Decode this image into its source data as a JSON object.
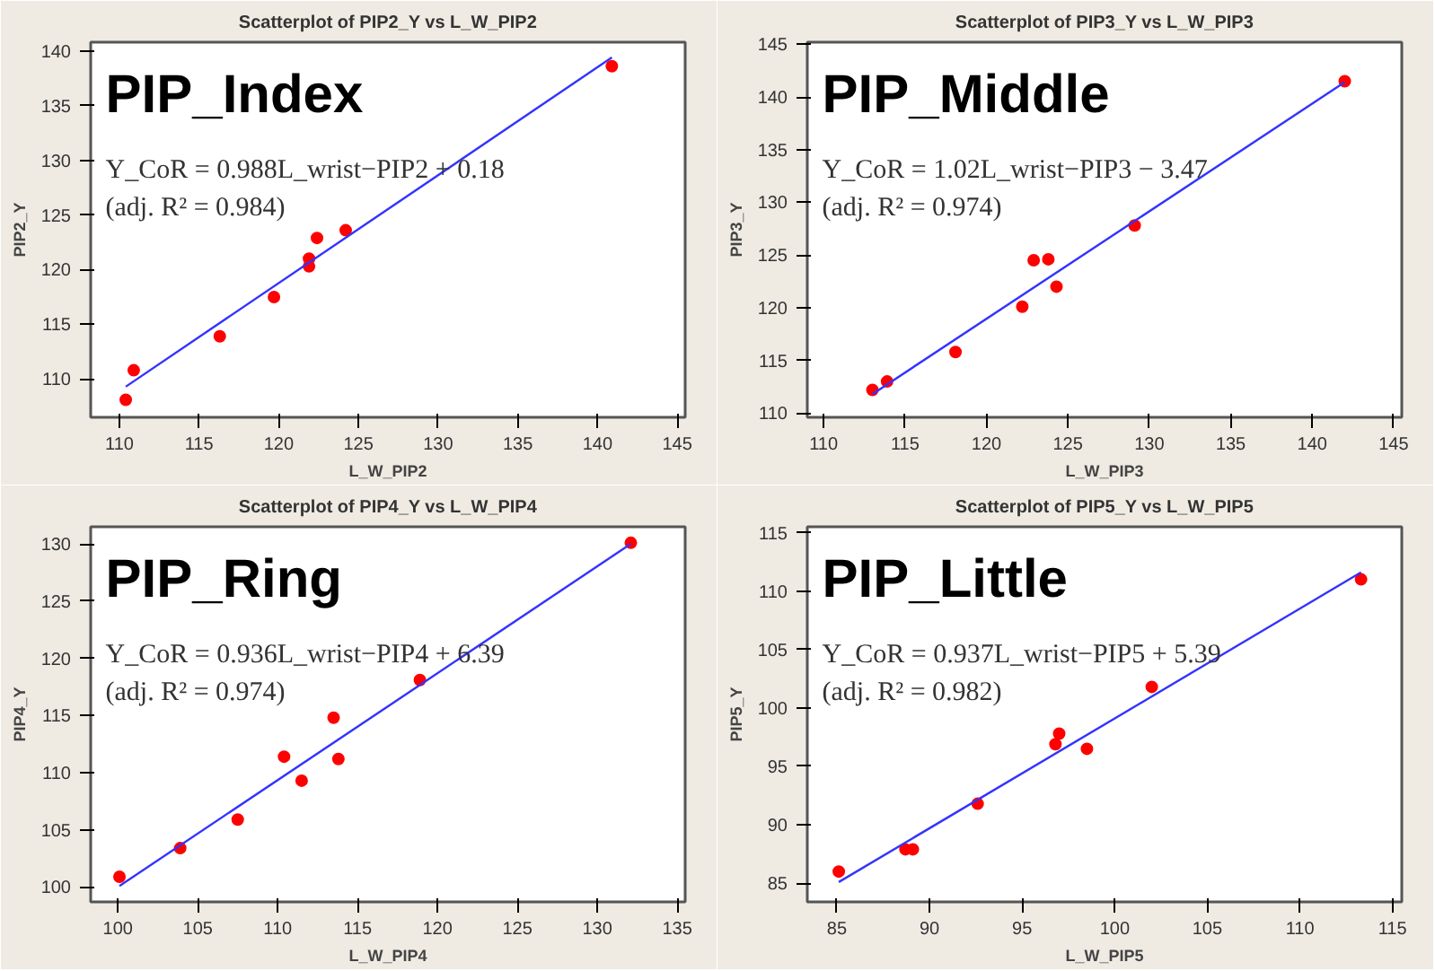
{
  "chart_data": [
    {
      "type": "scatter",
      "title": "Scatterplot of PIP2_Y vs L_W_PIP2",
      "xlabel": "L_W_PIP2",
      "ylabel": "PIP2_Y",
      "xlim": [
        108.2,
        145.5
      ],
      "ylim": [
        106.5,
        140.8
      ],
      "xticks": [
        110,
        115,
        120,
        125,
        130,
        135,
        140,
        145
      ],
      "yticks": [
        110,
        115,
        120,
        125,
        130,
        135,
        140
      ],
      "annotations": [
        "PIP_Index",
        "Y_CoR = 0.988L_wrist−PIP2 + 0.18",
        "(adj. R² = 0.984)"
      ],
      "series": [
        {
          "marker": "circle",
          "color": "#ff0000",
          "x": [
            110.4,
            110.9,
            116.3,
            119.7,
            121.9,
            121.9,
            122.4,
            124.2,
            140.9
          ],
          "values": [
            108.1,
            110.8,
            113.9,
            117.5,
            121.0,
            120.3,
            122.9,
            123.6,
            138.6
          ]
        },
        {
          "type": "line",
          "color": "#3333ff",
          "x": [
            110.4,
            140.9
          ],
          "values": [
            109.3,
            139.4
          ]
        }
      ]
    },
    {
      "type": "scatter",
      "title": "Scatterplot of PIP3_Y vs L_W_PIP3",
      "xlabel": "L_W_PIP3",
      "ylabel": "PIP3_Y",
      "xlim": [
        109.0,
        145.5
      ],
      "ylim": [
        109.6,
        145.2
      ],
      "xticks": [
        110,
        115,
        120,
        125,
        130,
        135,
        140,
        145
      ],
      "yticks": [
        110,
        115,
        120,
        125,
        130,
        135,
        140,
        145
      ],
      "annotations": [
        "PIP_Middle",
        "Y_CoR = 1.02L_wrist−PIP3 − 3.47",
        "(adj. R² = 0.974)"
      ],
      "series": [
        {
          "marker": "circle",
          "color": "#ff0000",
          "x": [
            113.0,
            113.9,
            118.1,
            122.2,
            122.9,
            123.8,
            124.3,
            129.1,
            142.0
          ],
          "values": [
            112.2,
            113.0,
            115.8,
            120.1,
            124.5,
            124.6,
            122.0,
            127.8,
            141.5
          ]
        },
        {
          "type": "line",
          "color": "#3333ff",
          "x": [
            113.0,
            142.0
          ],
          "values": [
            111.8,
            141.4
          ]
        }
      ]
    },
    {
      "type": "scatter",
      "title": "Scatterplot of PIP4_Y vs L_W_PIP4",
      "xlabel": "L_W_PIP4",
      "ylabel": "PIP4_Y",
      "xlim": [
        98.3,
        135.5
      ],
      "ylim": [
        98.7,
        131.5
      ],
      "xticks": [
        100,
        105,
        110,
        115,
        120,
        125,
        130,
        135
      ],
      "yticks": [
        100,
        105,
        110,
        115,
        120,
        125,
        130
      ],
      "annotations": [
        "PIP_Ring",
        "Y_CoR = 0.936L_wrist−PIP4 + 6.39",
        "(adj. R² = 0.974)"
      ],
      "series": [
        {
          "marker": "circle",
          "color": "#ff0000",
          "x": [
            100.1,
            103.9,
            107.5,
            110.4,
            111.5,
            113.5,
            113.8,
            118.9,
            132.1
          ],
          "values": [
            100.9,
            103.4,
            105.9,
            111.4,
            109.3,
            114.8,
            111.2,
            118.1,
            130.1
          ]
        },
        {
          "type": "line",
          "color": "#3333ff",
          "x": [
            100.1,
            132.1
          ],
          "values": [
            100.1,
            130.0
          ]
        }
      ]
    },
    {
      "type": "scatter",
      "title": "Scatterplot of PIP5_Y vs L_W_PIP5",
      "xlabel": "L_W_PIP5",
      "ylabel": "PIP5_Y",
      "xlim": [
        83.4,
        115.5
      ],
      "ylim": [
        83.4,
        115.5
      ],
      "xticks": [
        85,
        90,
        95,
        100,
        105,
        110,
        115
      ],
      "yticks": [
        85,
        90,
        95,
        100,
        105,
        110,
        115
      ],
      "annotations": [
        "PIP_Little",
        "Y_CoR = 0.937L_wrist−PIP5 + 5.39",
        "(adj. R² = 0.982)"
      ],
      "series": [
        {
          "marker": "circle",
          "color": "#ff0000",
          "x": [
            85.1,
            88.7,
            89.1,
            92.6,
            96.8,
            97.0,
            98.5,
            102.0,
            113.3
          ],
          "values": [
            86.0,
            87.9,
            87.9,
            91.8,
            96.9,
            97.8,
            96.5,
            101.8,
            111.0
          ]
        },
        {
          "type": "line",
          "color": "#3333ff",
          "x": [
            85.1,
            113.3
          ],
          "values": [
            85.1,
            111.6
          ]
        }
      ]
    }
  ]
}
